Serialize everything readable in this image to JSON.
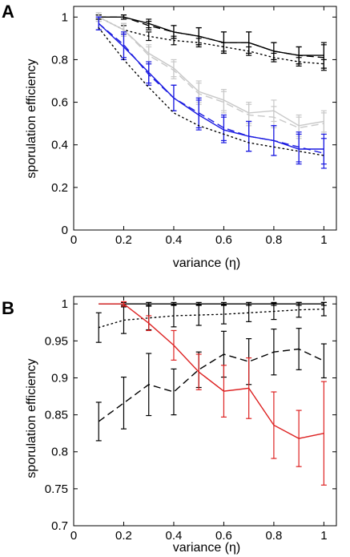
{
  "chart_data": [
    {
      "panel": "A",
      "type": "line",
      "xlabel": "variance (η)",
      "ylabel": "sporulation efficiency",
      "xlim": [
        0,
        1.05
      ],
      "ylim": [
        0,
        1.05
      ],
      "xticks": [
        0,
        0.2,
        0.4,
        0.6,
        0.8,
        1
      ],
      "yticks": [
        0,
        0.2,
        0.4,
        0.6,
        0.8,
        1
      ],
      "x": [
        0.1,
        0.2,
        0.3,
        0.4,
        0.5,
        0.6,
        0.7,
        0.8,
        0.9,
        1.0
      ],
      "series": [
        {
          "color": "#000000",
          "dash": "solid",
          "values": [
            1.0,
            1.0,
            0.97,
            0.93,
            0.91,
            0.88,
            0.88,
            0.84,
            0.82,
            0.82
          ],
          "errors": [
            0.01,
            0.01,
            0.02,
            0.03,
            0.04,
            0.05,
            0.05,
            0.04,
            0.04,
            0.06
          ]
        },
        {
          "color": "#000000",
          "dash": "dashed",
          "values": [
            1.0,
            1.0,
            0.96,
            0.93,
            0.91,
            0.88,
            0.88,
            0.84,
            0.82,
            0.81
          ],
          "errors": [
            0.01,
            0.01,
            0.02,
            0.03,
            0.04,
            0.05,
            0.05,
            0.04,
            0.04,
            0.06
          ]
        },
        {
          "color": "#000000",
          "dash": "dotted",
          "values": [
            1.0,
            0.94,
            0.91,
            0.89,
            0.88,
            0.86,
            0.84,
            0.81,
            0.79,
            0.78
          ],
          "errors": [
            0.01,
            0.02,
            0.02,
            0.02,
            0.02,
            0.02,
            0.02,
            0.02,
            0.02,
            0.02
          ]
        },
        {
          "color": "#c8c8c8",
          "dash": "solid",
          "values": [
            1.0,
            0.94,
            0.83,
            0.76,
            0.65,
            0.61,
            0.55,
            0.56,
            0.49,
            0.51
          ],
          "errors": [
            0.02,
            0.03,
            0.04,
            0.04,
            0.05,
            0.05,
            0.05,
            0.05,
            0.05,
            0.05
          ]
        },
        {
          "color": "#c8c8c8",
          "dash": "dashed",
          "values": [
            1.0,
            0.94,
            0.82,
            0.75,
            0.64,
            0.6,
            0.54,
            0.53,
            0.48,
            0.5
          ],
          "errors": [
            0.02,
            0.03,
            0.04,
            0.04,
            0.05,
            0.05,
            0.05,
            0.05,
            0.05,
            0.05
          ]
        },
        {
          "color": "#1a1ae0",
          "dash": "solid",
          "values": [
            0.97,
            0.86,
            0.74,
            0.62,
            0.54,
            0.47,
            0.44,
            0.42,
            0.38,
            0.38
          ],
          "errors": [
            0.03,
            0.06,
            0.05,
            0.06,
            0.07,
            0.06,
            0.07,
            0.07,
            0.07,
            0.07
          ]
        },
        {
          "color": "#1a1ae0",
          "dash": "dashed",
          "values": [
            0.97,
            0.87,
            0.73,
            0.62,
            0.55,
            0.48,
            0.44,
            0.42,
            0.39,
            0.36
          ],
          "errors": [
            0.03,
            0.06,
            0.05,
            0.06,
            0.07,
            0.06,
            0.07,
            0.07,
            0.07,
            0.07
          ]
        },
        {
          "color": "#000000",
          "dash": "dotted",
          "values": [
            0.95,
            0.8,
            0.67,
            0.55,
            0.49,
            0.45,
            0.41,
            0.39,
            0.37,
            0.35
          ],
          "errors": [
            0,
            0,
            0,
            0,
            0,
            0,
            0,
            0,
            0,
            0
          ]
        }
      ]
    },
    {
      "panel": "B",
      "type": "line",
      "xlabel": "variance (η)",
      "ylabel": "sporulation efficiency",
      "xlim": [
        0,
        1.05
      ],
      "ylim": [
        0.7,
        1.01
      ],
      "xticks": [
        0,
        0.2,
        0.4,
        0.6,
        0.8,
        1
      ],
      "yticks": [
        0.7,
        0.75,
        0.8,
        0.85,
        0.9,
        0.95,
        1
      ],
      "x": [
        0.1,
        0.2,
        0.3,
        0.4,
        0.5,
        0.6,
        0.7,
        0.8,
        0.9,
        1.0
      ],
      "series": [
        {
          "color": "#000000",
          "dash": "solid",
          "values": [
            1.0,
            1.0,
            1.0,
            1.0,
            1.0,
            1.0,
            1.0,
            1.0,
            1.0,
            1.0
          ],
          "errors": [
            0,
            0.002,
            0.002,
            0.002,
            0.002,
            0.002,
            0.002,
            0.002,
            0.002,
            0.002
          ]
        },
        {
          "color": "#000000",
          "dash": "dotted",
          "values": [
            0.968,
            0.978,
            0.981,
            0.984,
            0.985,
            0.986,
            0.988,
            0.99,
            0.992,
            0.993
          ],
          "errors": [
            0.02,
            0.018,
            0.016,
            0.015,
            0.014,
            0.013,
            0.012,
            0.011,
            0.01,
            0.009
          ]
        },
        {
          "color": "#000000",
          "dash": "dashed",
          "values": [
            0.841,
            0.866,
            0.891,
            0.881,
            0.911,
            0.932,
            0.922,
            0.935,
            0.939,
            0.923
          ],
          "errors": [
            0.026,
            0.035,
            0.042,
            0.031,
            0.024,
            0.031,
            0.031,
            0.031,
            0.028,
            0.023
          ]
        },
        {
          "color": "#dd2222",
          "dash": "solid",
          "values": [
            1.0,
            1.0,
            0.974,
            0.944,
            0.908,
            0.882,
            0.886,
            0.836,
            0.818,
            0.825
          ],
          "errors": [
            0,
            0.003,
            0.01,
            0.02,
            0.024,
            0.035,
            0.041,
            0.045,
            0.038,
            0.07
          ]
        }
      ]
    }
  ]
}
